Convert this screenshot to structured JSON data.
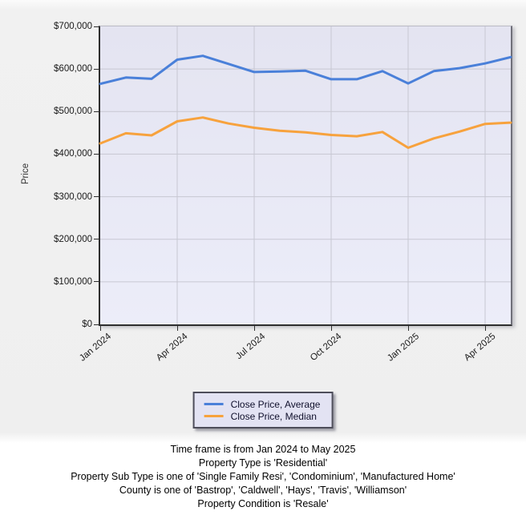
{
  "chart": {
    "y_axis_title": "Price"
  },
  "chart_data": {
    "type": "line",
    "title": "",
    "xlabel": "",
    "ylabel": "Price",
    "ylim": [
      0,
      700000
    ],
    "grid": true,
    "legend_position": "bottom-center",
    "x": [
      "Jan 2024",
      "Feb 2024",
      "Mar 2024",
      "Apr 2024",
      "May 2024",
      "Jun 2024",
      "Jul 2024",
      "Aug 2024",
      "Sep 2024",
      "Oct 2024",
      "Nov 2024",
      "Dec 2024",
      "Jan 2025",
      "Feb 2025",
      "Mar 2025",
      "Apr 2025",
      "May 2025"
    ],
    "x_tick_indices": [
      0,
      3,
      6,
      9,
      12,
      15
    ],
    "y_ticks": [
      {
        "value": 0,
        "label": "$0"
      },
      {
        "value": 100000,
        "label": "$100,000"
      },
      {
        "value": 200000,
        "label": "$200,000"
      },
      {
        "value": 300000,
        "label": "$300,000"
      },
      {
        "value": 400000,
        "label": "$400,000"
      },
      {
        "value": 500000,
        "label": "$500,000"
      },
      {
        "value": 600000,
        "label": "$600,000"
      },
      {
        "value": 700000,
        "label": "$700,000"
      }
    ],
    "series": [
      {
        "name": "Close Price, Average",
        "color": "#4a80d9",
        "values": [
          565000,
          580000,
          577000,
          622000,
          631000,
          612000,
          593000,
          594000,
          596000,
          576000,
          576000,
          595000,
          566000,
          595000,
          602000,
          613000,
          628000
        ]
      },
      {
        "name": "Close Price, Median",
        "color": "#f7a23d",
        "values": [
          425000,
          449000,
          444000,
          477000,
          486000,
          472000,
          462000,
          455000,
          451000,
          445000,
          442000,
          452000,
          415000,
          437000,
          453000,
          471000,
          474000
        ]
      }
    ]
  },
  "footer": {
    "lines": [
      "Time frame is from Jan 2024 to May 2025",
      "Property Type is 'Residential'",
      "Property Sub Type is one of 'Single Family Resi', 'Condominium', 'Manufactured Home'",
      "County is one of 'Bastrop', 'Caldwell', 'Hays', 'Travis', 'Williamson'",
      "Property Condition is 'Resale'"
    ]
  }
}
